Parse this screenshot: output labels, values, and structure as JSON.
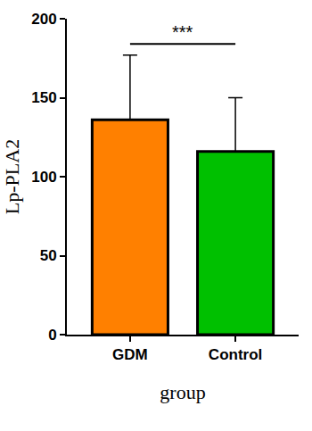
{
  "chart_data": {
    "type": "bar",
    "categories": [
      "GDM",
      "Control"
    ],
    "values": [
      136,
      116
    ],
    "error": [
      41,
      34
    ],
    "colors": [
      "#ff8000",
      "#00c000"
    ],
    "xlabel": "group",
    "ylabel": "Lp-PLA2",
    "ylim": [
      0,
      200
    ],
    "yticks": [
      0,
      50,
      100,
      150,
      200
    ],
    "grid": false,
    "annotations": [
      {
        "text": "***",
        "x": [
          "GDM",
          "Control"
        ],
        "y": 184
      }
    ]
  }
}
